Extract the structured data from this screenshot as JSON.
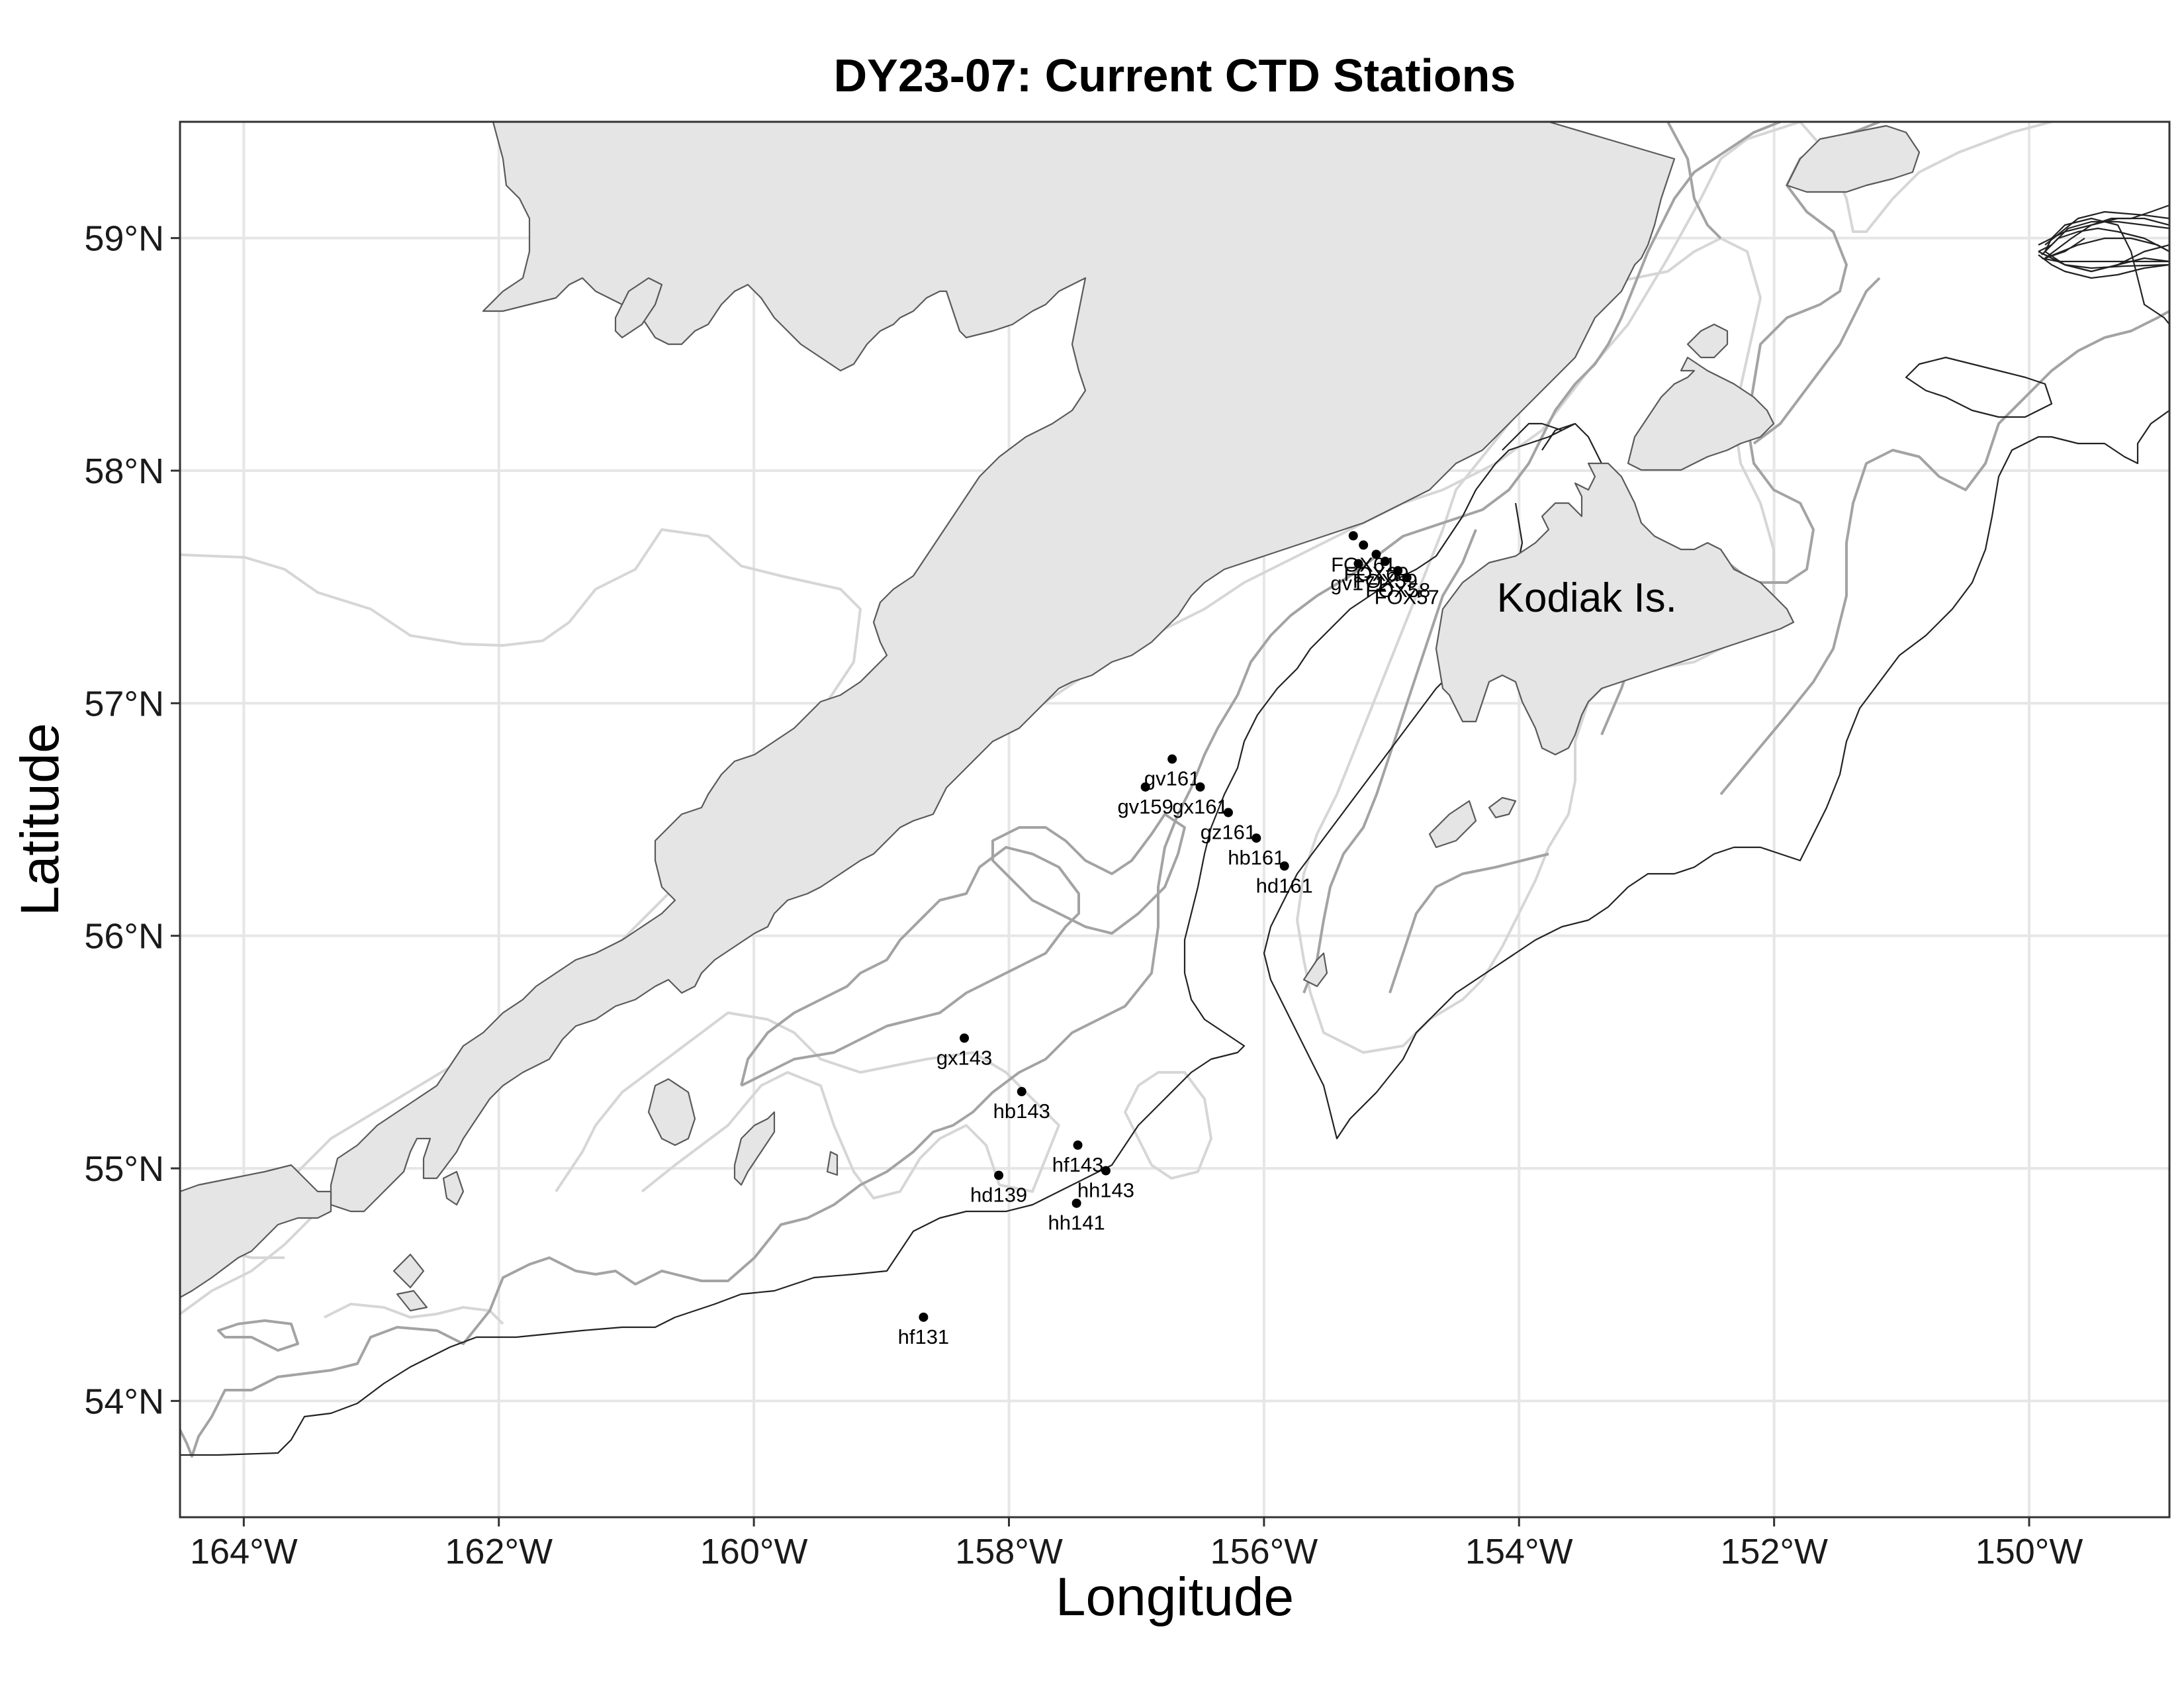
{
  "title": "DY23-07: Current CTD Stations",
  "xlabel": "Longitude",
  "ylabel": "Latitude",
  "xlim": [
    -164.5,
    -148.9
  ],
  "ylim": [
    53.5,
    59.5
  ],
  "x_ticks": [
    {
      "value": -164,
      "label": "164°W"
    },
    {
      "value": -162,
      "label": "162°W"
    },
    {
      "value": -160,
      "label": "160°W"
    },
    {
      "value": -158,
      "label": "158°W"
    },
    {
      "value": -156,
      "label": "156°W"
    },
    {
      "value": -154,
      "label": "154°W"
    },
    {
      "value": -152,
      "label": "152°W"
    },
    {
      "value": -150,
      "label": "150°W"
    }
  ],
  "y_ticks": [
    {
      "value": 54,
      "label": "54°N"
    },
    {
      "value": 55,
      "label": "55°N"
    },
    {
      "value": 56,
      "label": "56°N"
    },
    {
      "value": 57,
      "label": "57°N"
    },
    {
      "value": 58,
      "label": "58°N"
    },
    {
      "value": 59,
      "label": "59°N"
    }
  ],
  "place_label": {
    "text": "Kodiak Is.",
    "lon": -153.5,
    "lat": 57.45
  },
  "colors": {
    "land": "#e5e5e5",
    "coast": "#5a5a5a",
    "contour_dark": "#222222",
    "contour_mid": "#a3a3a3",
    "contour_light": "#d6d6d6",
    "station": "#000000",
    "grid": "#e6e6e6"
  },
  "stations": [
    {
      "name": "FOX60",
      "lon": -155.3,
      "lat": 57.72,
      "show_label": false
    },
    {
      "name": "FOX61",
      "lon": -155.22,
      "lat": 57.68,
      "show_label": true
    },
    {
      "name": "FOX60",
      "lon": -155.12,
      "lat": 57.64,
      "show_label": true
    },
    {
      "name": "FOX59",
      "lon": -155.05,
      "lat": 57.61,
      "show_label": true
    },
    {
      "name": "FOX58",
      "lon": -154.95,
      "lat": 57.57,
      "show_label": true
    },
    {
      "name": "FOX57",
      "lon": -154.88,
      "lat": 57.54,
      "show_label": true
    },
    {
      "name": "gv171",
      "lon": -155.26,
      "lat": 57.6,
      "show_label": true
    },
    {
      "name": "gv161",
      "lon": -156.72,
      "lat": 56.76,
      "show_label": true
    },
    {
      "name": "gv159",
      "lon": -156.93,
      "lat": 56.64,
      "show_label": true
    },
    {
      "name": "gx161",
      "lon": -156.5,
      "lat": 56.64,
      "show_label": true
    },
    {
      "name": "gz161",
      "lon": -156.28,
      "lat": 56.53,
      "show_label": true
    },
    {
      "name": "hb161",
      "lon": -156.06,
      "lat": 56.42,
      "show_label": true
    },
    {
      "name": "hd161",
      "lon": -155.84,
      "lat": 56.3,
      "show_label": true
    },
    {
      "name": "gx143",
      "lon": -158.35,
      "lat": 55.56,
      "show_label": true
    },
    {
      "name": "hb143",
      "lon": -157.9,
      "lat": 55.33,
      "show_label": true
    },
    {
      "name": "hf143",
      "lon": -157.46,
      "lat": 55.1,
      "show_label": true
    },
    {
      "name": "hh143",
      "lon": -157.24,
      "lat": 54.99,
      "show_label": true
    },
    {
      "name": "hd139",
      "lon": -158.08,
      "lat": 54.97,
      "show_label": true
    },
    {
      "name": "hh141",
      "lon": -157.47,
      "lat": 54.85,
      "show_label": true
    },
    {
      "name": "hf131",
      "lon": -158.67,
      "lat": 54.36,
      "show_label": true
    }
  ]
}
